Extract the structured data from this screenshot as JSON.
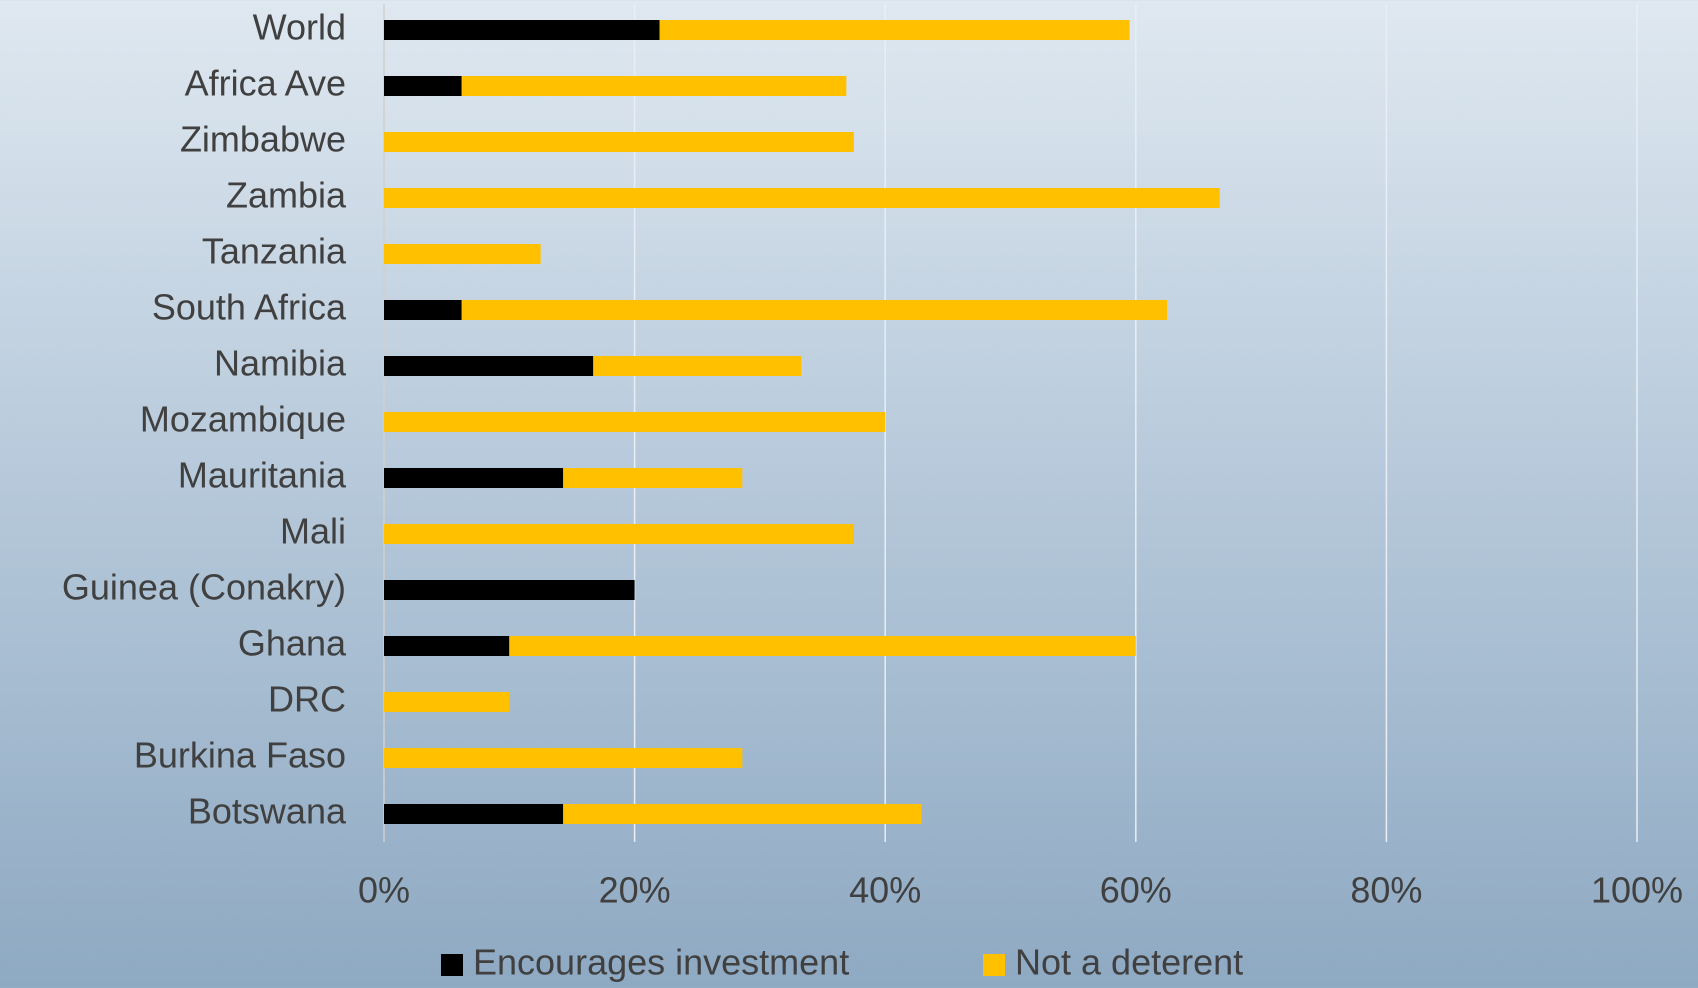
{
  "chart_data": {
    "type": "stacked_barh",
    "categories": [
      "World",
      "Africa Ave",
      "Zimbabwe",
      "Zambia",
      "Tanzania",
      "South Africa",
      "Namibia",
      "Mozambique",
      "Mauritania",
      "Mali",
      "Guinea (Conakry)",
      "Ghana",
      "DRC",
      "Burkina Faso",
      "Botswana"
    ],
    "series": [
      {
        "name": "Encourages investment",
        "color": "#000000",
        "values": [
          22,
          6.2,
          0,
          0,
          0,
          6.2,
          16.7,
          0,
          14.3,
          0,
          20,
          10,
          0,
          0,
          14.3
        ]
      },
      {
        "name": "Not a deterent",
        "color": "#ffc000",
        "values": [
          37.5,
          30.7,
          37.5,
          66.7,
          12.5,
          56.3,
          16.6,
          40,
          14.3,
          37.5,
          0,
          50,
          10,
          28.6,
          28.6
        ]
      }
    ],
    "xlim": [
      0,
      100
    ],
    "xticks": [
      {
        "value": 0,
        "label": "0%"
      },
      {
        "value": 20,
        "label": "20%"
      },
      {
        "value": 40,
        "label": "40%"
      },
      {
        "value": 60,
        "label": "60%"
      },
      {
        "value": 80,
        "label": "80%"
      },
      {
        "value": 100,
        "label": "100%"
      }
    ],
    "grid": true,
    "legend": "bottom"
  }
}
